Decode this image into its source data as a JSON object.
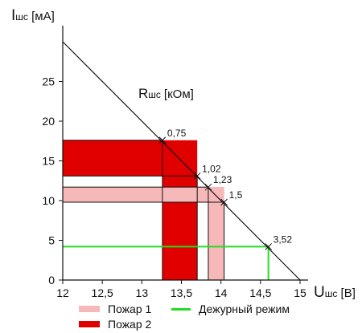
{
  "chart_data": {
    "type": "line",
    "y_axis_label": {
      "main": "I",
      "sub": "шс",
      "unit": "[мА]"
    },
    "x_axis_label": {
      "main": "U",
      "sub": "шс",
      "unit": "[В]"
    },
    "resistance_label": {
      "main": "R",
      "sub": "шс",
      "unit": "[кОм]"
    },
    "xlim": [
      12,
      15
    ],
    "ylim": [
      0,
      30
    ],
    "x_ticks": [
      "12",
      "12,5",
      "13",
      "13,5",
      "14",
      "14,5",
      "15"
    ],
    "x_tick_values": [
      12,
      12.5,
      13,
      13.5,
      14,
      14.5,
      15
    ],
    "y_ticks": [
      "0",
      "5",
      "10",
      "15",
      "20",
      "25"
    ],
    "y_tick_values": [
      0,
      5,
      10,
      15,
      20,
      25
    ],
    "load_line": {
      "points": [
        [
          12,
          30
        ],
        [
          15,
          0
        ]
      ]
    },
    "resistance_points": [
      {
        "label": "0,75",
        "x": 13.26,
        "y": 17.6
      },
      {
        "label": "1,02",
        "x": 13.7,
        "y": 13.1
      },
      {
        "label": "1,23",
        "x": 13.84,
        "y": 11.7
      },
      {
        "label": "1,5",
        "x": 14.04,
        "y": 9.8
      },
      {
        "label": "3,52",
        "x": 14.6,
        "y": 4.2
      }
    ],
    "regions": [
      {
        "series": "Пожар 2",
        "color": "#e00000",
        "x": [
          12,
          13.26
        ],
        "y": [
          13.1,
          17.6
        ]
      },
      {
        "series": "Пожар 2",
        "color": "#e00000",
        "x": [
          13.26,
          13.7
        ],
        "y": [
          0,
          17.6
        ]
      },
      {
        "series": "Пожар 1",
        "color": "#f6b8b8",
        "x": [
          12,
          14.04
        ],
        "y": [
          9.8,
          11.7
        ]
      },
      {
        "series": "Пожар 1",
        "color": "#f6b8b8",
        "x": [
          13.84,
          14.04
        ],
        "y": [
          0,
          11.7
        ]
      }
    ],
    "guard_line": {
      "series": "Дежурный режим",
      "color": "#22dd22",
      "y": 4.2,
      "x_end": 14.6
    },
    "legend": [
      {
        "label": "Пожар 1",
        "color": "#f6b8b8",
        "kind": "rect"
      },
      {
        "label": "Дежурный режим",
        "color": "#22dd22",
        "kind": "line"
      },
      {
        "label": "Пожар 2",
        "color": "#e00000",
        "kind": "rect"
      }
    ]
  }
}
